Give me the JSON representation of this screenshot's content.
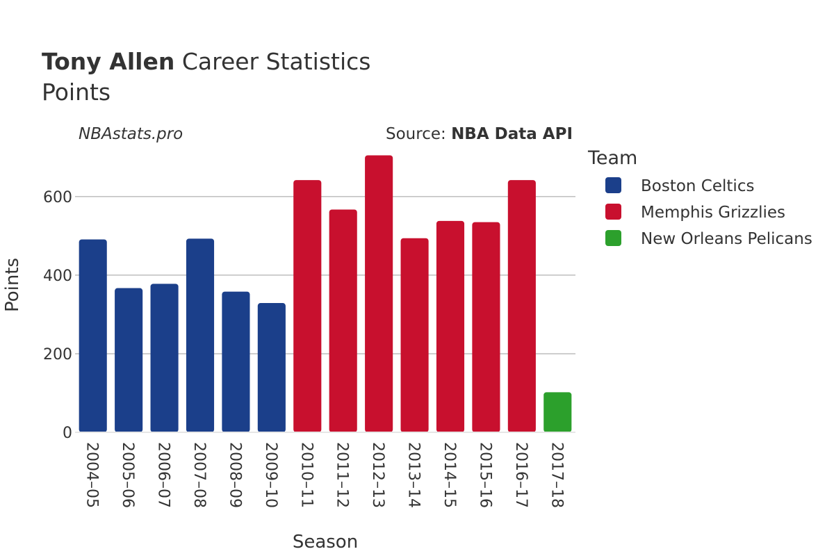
{
  "title": {
    "bold": "Tony Allen",
    "rest": " Career Statistics",
    "subtitle": "Points"
  },
  "watermark": "NBAstats.pro",
  "source": {
    "prefix": "Source: ",
    "name": "NBA Data API"
  },
  "legend": {
    "title": "Team",
    "placement": "right"
  },
  "chart_data": {
    "type": "bar",
    "xlabel": "Season",
    "ylabel": "Points",
    "ylim": [
      0,
      720
    ],
    "yticks": [
      0,
      200,
      400,
      600
    ],
    "grid": true,
    "categories": [
      "2004–05",
      "2005–06",
      "2006–07",
      "2007–08",
      "2008–09",
      "2009–10",
      "2010–11",
      "2011–12",
      "2012–13",
      "2013–14",
      "2014–15",
      "2015–16",
      "2016–17",
      "2017–18"
    ],
    "series": [
      {
        "name": "Boston Celtics",
        "color": "#1b3f8a",
        "values": [
          491,
          367,
          378,
          493,
          358,
          329,
          null,
          null,
          null,
          null,
          null,
          null,
          null,
          null
        ]
      },
      {
        "name": "Memphis Grizzlies",
        "color": "#c8102e",
        "values": [
          null,
          null,
          null,
          null,
          null,
          null,
          642,
          567,
          705,
          494,
          538,
          535,
          642,
          null
        ]
      },
      {
        "name": "New Orleans Pelicans",
        "color": "#2ca02c",
        "values": [
          null,
          null,
          null,
          null,
          null,
          null,
          null,
          null,
          null,
          null,
          null,
          null,
          null,
          102
        ]
      }
    ]
  }
}
